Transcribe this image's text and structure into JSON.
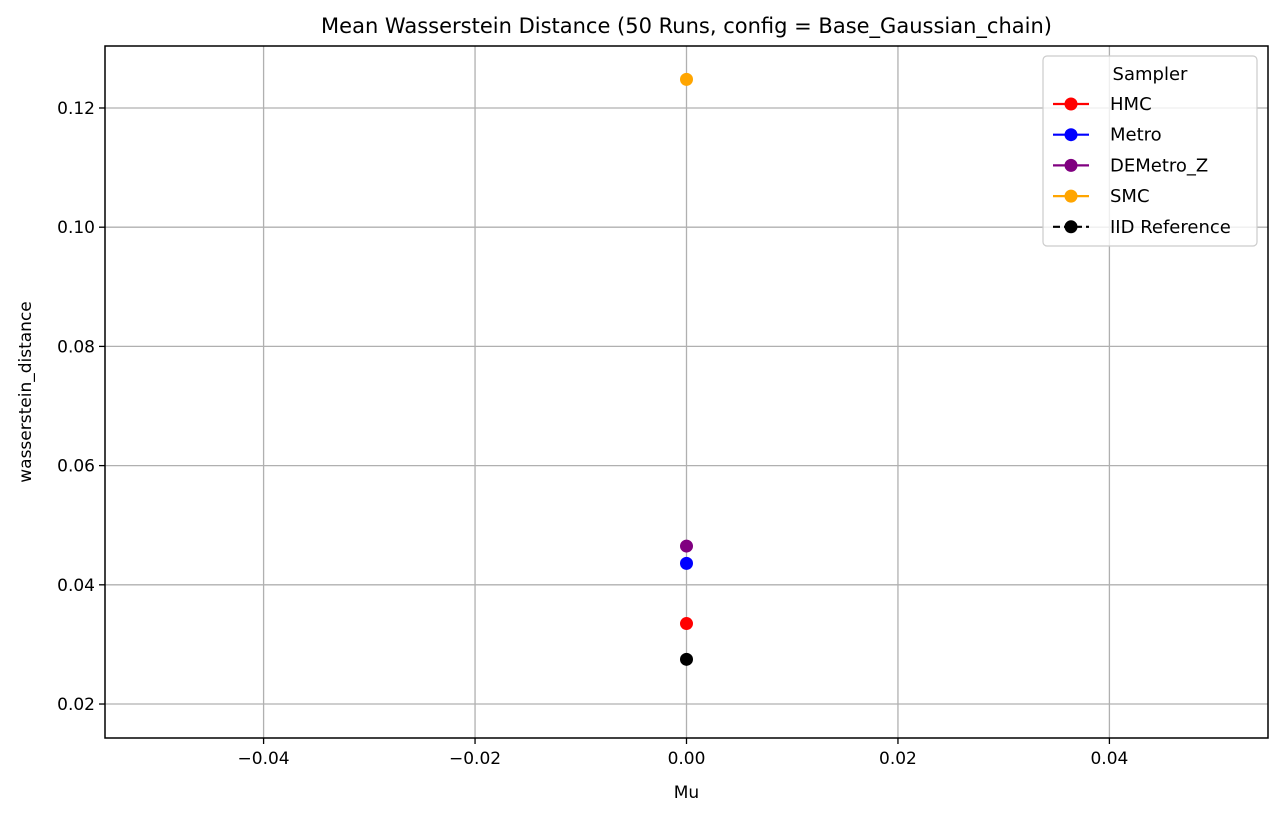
{
  "chart_data": {
    "type": "scatter",
    "title": "Mean Wasserstein Distance (50 Runs, config = Base_Gaussian_chain)",
    "xlabel": "Mu",
    "ylabel": "wasserstein_distance",
    "xlim": [
      -0.055,
      0.055
    ],
    "ylim": [
      0.0143,
      0.1304
    ],
    "xticks": [
      -0.04,
      -0.02,
      0.0,
      0.02,
      0.04
    ],
    "xtick_labels": [
      "−0.04",
      "−0.02",
      "0.00",
      "0.02",
      "0.04"
    ],
    "yticks": [
      0.02,
      0.04,
      0.06,
      0.08,
      0.1,
      0.12
    ],
    "ytick_labels": [
      "0.02",
      "0.04",
      "0.06",
      "0.08",
      "0.10",
      "0.12"
    ],
    "grid": true,
    "legend": {
      "title": "Sampler",
      "placement": "top-right"
    },
    "series": [
      {
        "name": "HMC",
        "color": "#ff0000",
        "linestyle": "solid",
        "x": [
          0.0
        ],
        "y": [
          0.0335
        ]
      },
      {
        "name": "Metro",
        "color": "#0000ff",
        "linestyle": "solid",
        "x": [
          0.0
        ],
        "y": [
          0.0436
        ]
      },
      {
        "name": "DEMetro_Z",
        "color": "#800080",
        "linestyle": "solid",
        "x": [
          0.0
        ],
        "y": [
          0.0465
        ]
      },
      {
        "name": "SMC",
        "color": "#ffa500",
        "linestyle": "solid",
        "x": [
          0.0
        ],
        "y": [
          0.1248
        ]
      },
      {
        "name": "IID Reference",
        "color": "#000000",
        "linestyle": "dashed",
        "x": [
          0.0
        ],
        "y": [
          0.0275
        ]
      }
    ]
  }
}
